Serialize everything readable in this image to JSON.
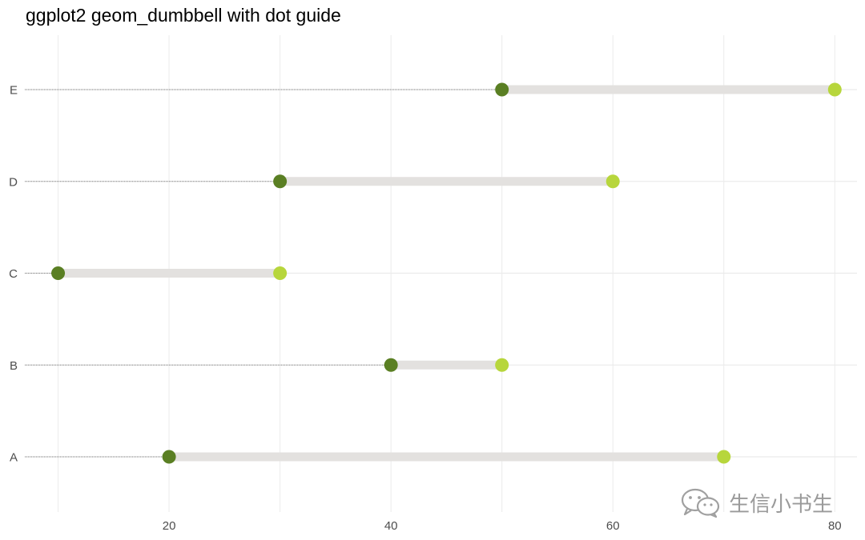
{
  "chart_data": {
    "type": "dumbbell",
    "title": "ggplot2 geom_dumbbell with dot guide",
    "categories": [
      "A",
      "B",
      "C",
      "D",
      "E"
    ],
    "series": [
      {
        "values": [
          20,
          40,
          10,
          30,
          50
        ]
      },
      {
        "values": [
          70,
          50,
          30,
          60,
          80
        ]
      }
    ],
    "xlim": [
      7,
      82
    ],
    "x_ticks": [
      20,
      40,
      60,
      80
    ],
    "grid": true,
    "legend": "none",
    "colors": {
      "start_point": "#5a7f23",
      "end_point": "#b7d63c",
      "segment": "#e3e1df",
      "dot_guide": "#7a7a7a",
      "grid": "#ebebeb"
    }
  },
  "watermark": {
    "text": "生信小书生",
    "icon": "wechat-icon"
  }
}
